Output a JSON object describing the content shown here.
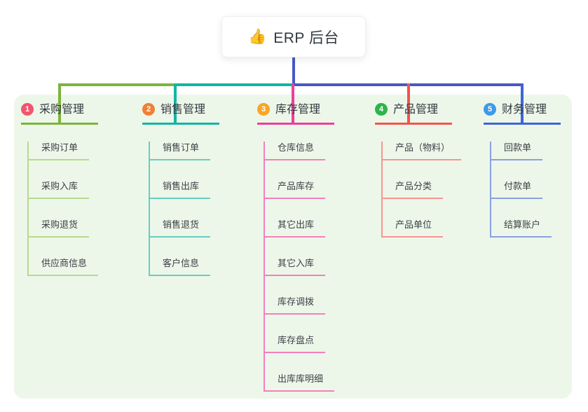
{
  "root": {
    "icon": "👍",
    "title": "ERP 后台"
  },
  "colors": {
    "canvas_bg": "#ffffff",
    "panel_bg": "#edf7e9",
    "root_line": "#4858c4",
    "node_text": "#333941",
    "child_text": "#3c4148"
  },
  "branches": [
    {
      "number": "1",
      "label": "采购管理",
      "badge_color": "#f1566e",
      "line_color": "#7cb43d",
      "child_line_color": "#b5da8d",
      "children": [
        "采购订单",
        "采购入库",
        "采购退货",
        "供应商信息"
      ]
    },
    {
      "number": "2",
      "label": "销售管理",
      "badge_color": "#f08037",
      "line_color": "#13b5a4",
      "child_line_color": "#66cec1",
      "children": [
        "销售订单",
        "销售出库",
        "销售退货",
        "客户信息"
      ]
    },
    {
      "number": "3",
      "label": "库存管理",
      "badge_color": "#f7a626",
      "line_color": "#ed3f9b",
      "child_line_color": "#f37fbd",
      "children": [
        "仓库信息",
        "产品库存",
        "其它出库",
        "其它入库",
        "库存调拨",
        "库存盘点",
        "出库库明细"
      ]
    },
    {
      "number": "4",
      "label": "产品管理",
      "badge_color": "#2fb44d",
      "line_color": "#f2544d",
      "child_line_color": "#f8938e",
      "children": [
        "产品（物料）",
        "产品分类",
        "产品单位"
      ]
    },
    {
      "number": "5",
      "label": "财务管理",
      "badge_color": "#3d9be9",
      "line_color": "#3f64d7",
      "child_line_color": "#89a0e2",
      "children": [
        "回款单",
        "付款单",
        "结算账户"
      ]
    }
  ]
}
